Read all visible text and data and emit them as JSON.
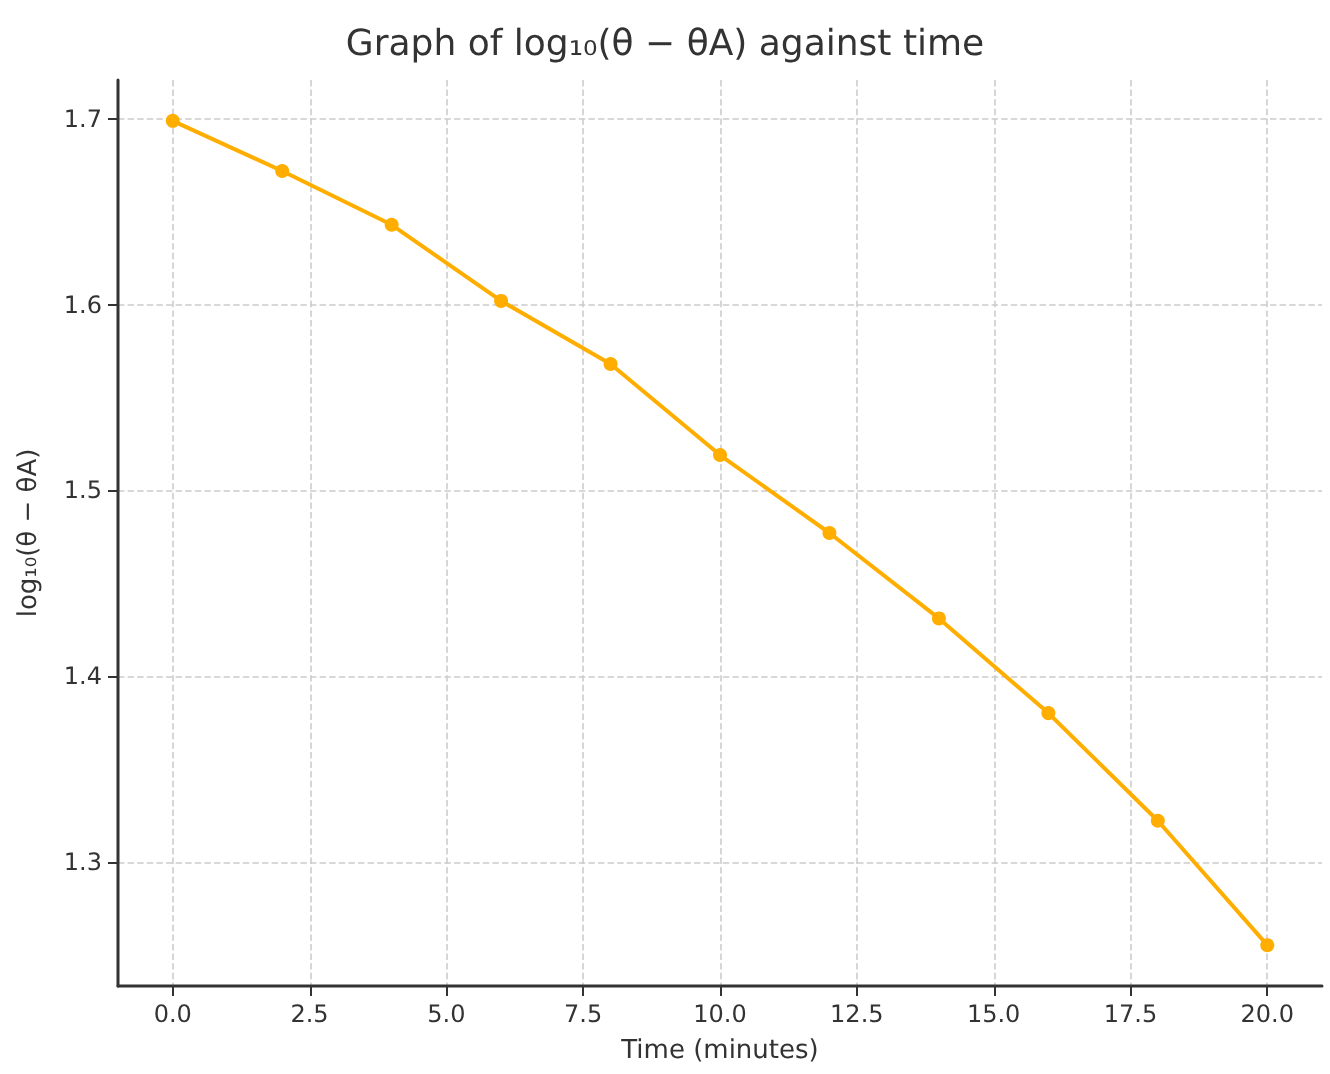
{
  "chart_data": {
    "type": "line",
    "title": "Graph of log₁₀(θ − θA) against time",
    "xlabel": "Time (minutes)",
    "ylabel": "log₁₀(θ − θA)",
    "x": [
      0,
      2,
      4,
      6,
      8,
      10,
      12,
      14,
      16,
      18,
      20
    ],
    "series": [
      {
        "color": "#ffae00",
        "values": [
          1.699,
          1.672,
          1.643,
          1.602,
          1.568,
          1.519,
          1.477,
          1.431,
          1.38,
          1.322,
          1.255
        ]
      }
    ],
    "xlim": [
      -1,
      21
    ],
    "ylim": [
      1.233,
      1.721
    ],
    "xticks": [
      {
        "value": 0,
        "label": "0.0"
      },
      {
        "value": 2.5,
        "label": "2.5"
      },
      {
        "value": 5,
        "label": "5.0"
      },
      {
        "value": 7.5,
        "label": "7.5"
      },
      {
        "value": 10,
        "label": "10.0"
      },
      {
        "value": 12.5,
        "label": "12.5"
      },
      {
        "value": 15,
        "label": "15.0"
      },
      {
        "value": 17.5,
        "label": "17.5"
      },
      {
        "value": 20,
        "label": "20.0"
      }
    ],
    "yticks": [
      1.3,
      1.4,
      1.5,
      1.6,
      1.7
    ],
    "grid": true,
    "marker": "circle",
    "line_style": "solid"
  }
}
